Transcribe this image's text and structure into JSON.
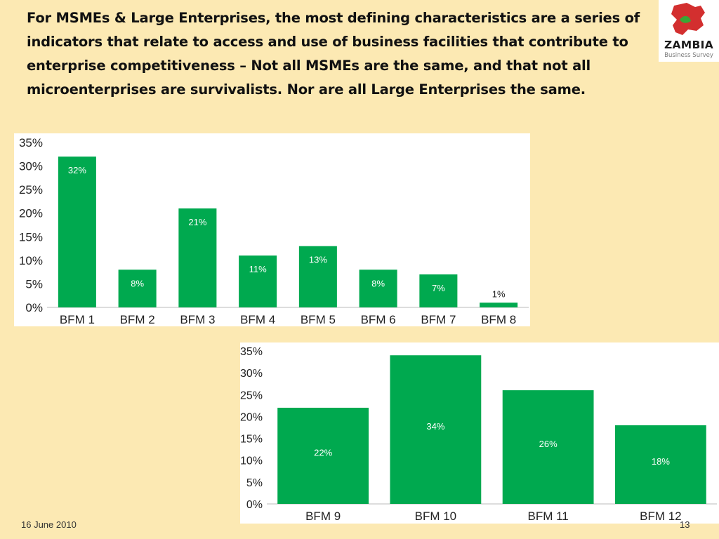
{
  "slide": {
    "heading": "For MSMEs & Large Enterprises, the most defining characteristics are a series of indicators that relate to access and use of business facilities that contribute to enterprise competitiveness – Not all MSMEs are the same, and that not all microenterprises are survivalists.  Nor are all Large Enterprises the same.",
    "footer_date": "16 June 2010",
    "page_number": "13",
    "logo": {
      "name": "ZAMBIA",
      "sub": "Business Survey",
      "map_color": "#d32f2f",
      "leaf_color": "#3aa635"
    }
  },
  "colors": {
    "bar": "#00a94f",
    "bar_label": "#ffffff",
    "background": "#fce9b3"
  },
  "chart_data": [
    {
      "type": "bar",
      "categories": [
        "BFM 1",
        "BFM 2",
        "BFM 3",
        "BFM 4",
        "BFM 5",
        "BFM 6",
        "BFM 7",
        "BFM 8"
      ],
      "values": [
        32,
        8,
        21,
        11,
        13,
        8,
        7,
        1
      ],
      "labels": [
        "32%",
        "8%",
        "21%",
        "11%",
        "13%",
        "8%",
        "7%",
        "1%"
      ],
      "yticks": [
        "0%",
        "5%",
        "10%",
        "15%",
        "20%",
        "25%",
        "30%",
        "35%"
      ],
      "ylim": [
        0,
        35
      ],
      "title": "",
      "xlabel": "",
      "ylabel": "",
      "grid": false
    },
    {
      "type": "bar",
      "categories": [
        "BFM 9",
        "BFM 10",
        "BFM 11",
        "BFM 12"
      ],
      "values": [
        22,
        34,
        26,
        18
      ],
      "labels": [
        "22%",
        "34%",
        "26%",
        "18%"
      ],
      "yticks": [
        "0%",
        "5%",
        "10%",
        "15%",
        "20%",
        "25%",
        "30%",
        "35%"
      ],
      "ylim": [
        0,
        35
      ],
      "title": "",
      "xlabel": "",
      "ylabel": "",
      "grid": false
    }
  ]
}
